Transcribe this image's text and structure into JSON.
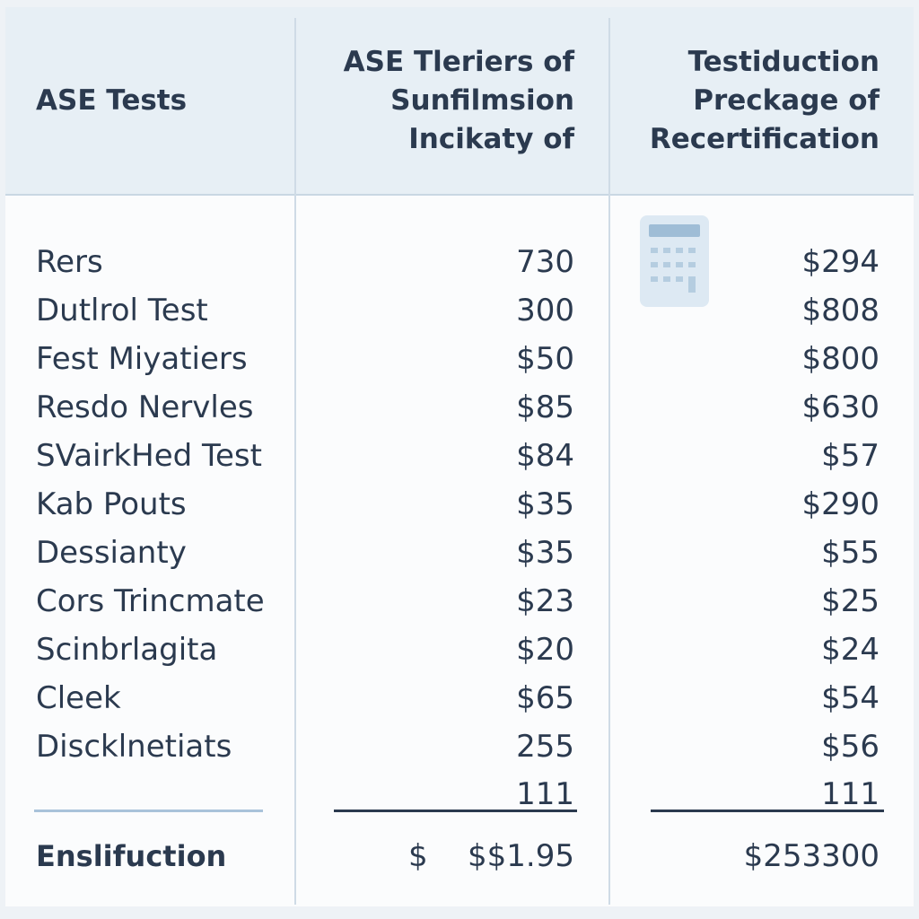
{
  "header": {
    "columns": [
      [
        "ASE Tests"
      ],
      [
        "ASE Tleriers of",
        "Sunfilmsion",
        "Incikaty of"
      ],
      [
        "Testiduction",
        "Preckage of",
        "Recertification"
      ]
    ]
  },
  "table": {
    "rows": [
      [
        "Rers",
        "730",
        "$294"
      ],
      [
        "Dutlrol Test",
        "300",
        "$808"
      ],
      [
        "Fest Miyatiers",
        "$50",
        "$800"
      ],
      [
        "Resdo Nervles",
        "$85",
        "$630"
      ],
      [
        "SVairkHed Test",
        "$84",
        "$57"
      ],
      [
        "Kab Pouts",
        "$35",
        "$290"
      ],
      [
        "Dessianty",
        "$35",
        "$55"
      ],
      [
        "Cors Trincmate",
        "$23",
        "$25"
      ],
      [
        "Scinbrlagita",
        "$20",
        "$24"
      ],
      [
        "Cleek",
        "$65",
        "$54"
      ],
      [
        "Discklnetiats",
        "255",
        "$56"
      ]
    ],
    "subtotal": {
      "col2": "111",
      "col3": "111"
    },
    "total": {
      "label": "Enslifuction",
      "currency": "$",
      "col2": "$$1.95",
      "col3": "$253300"
    }
  }
}
